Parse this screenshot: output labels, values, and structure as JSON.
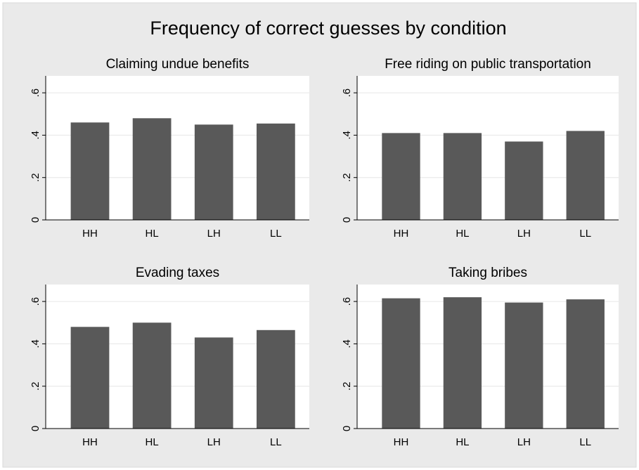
{
  "title": "Frequency of correct guesses by condition",
  "chart_data": [
    {
      "type": "bar",
      "title": "Claiming undue benefits",
      "categories": [
        "HH",
        "HL",
        "LH",
        "LL"
      ],
      "values": [
        0.46,
        0.48,
        0.45,
        0.455
      ],
      "color": "#595959",
      "ylim": [
        0,
        0.68
      ],
      "yticks": [
        0,
        {
          "value": 0.2,
          "label": ".2"
        },
        {
          "value": 0.4,
          "label": ".4"
        },
        {
          "value": 0.6,
          "label": ".6"
        }
      ],
      "grid": true
    },
    {
      "type": "bar",
      "title": "Free riding on public transportation",
      "categories": [
        "HH",
        "HL",
        "LH",
        "LL"
      ],
      "values": [
        0.41,
        0.41,
        0.37,
        0.42
      ],
      "color": "#595959",
      "ylim": [
        0,
        0.68
      ],
      "yticks": [
        0,
        {
          "value": 0.2,
          "label": ".2"
        },
        {
          "value": 0.4,
          "label": ".4"
        },
        {
          "value": 0.6,
          "label": ".6"
        }
      ],
      "grid": true
    },
    {
      "type": "bar",
      "title": "Evading taxes",
      "categories": [
        "HH",
        "HL",
        "LH",
        "LL"
      ],
      "values": [
        0.48,
        0.5,
        0.43,
        0.465
      ],
      "color": "#595959",
      "ylim": [
        0,
        0.68
      ],
      "yticks": [
        0,
        {
          "value": 0.2,
          "label": ".2"
        },
        {
          "value": 0.4,
          "label": ".4"
        },
        {
          "value": 0.6,
          "label": ".6"
        }
      ],
      "grid": true
    },
    {
      "type": "bar",
      "title": "Taking bribes",
      "categories": [
        "HH",
        "HL",
        "LH",
        "LL"
      ],
      "values": [
        0.615,
        0.62,
        0.595,
        0.61
      ],
      "color": "#595959",
      "ylim": [
        0,
        0.68
      ],
      "yticks": [
        0,
        {
          "value": 0.2,
          "label": ".2"
        },
        {
          "value": 0.4,
          "label": ".4"
        },
        {
          "value": 0.6,
          "label": ".6"
        }
      ],
      "grid": true
    }
  ]
}
